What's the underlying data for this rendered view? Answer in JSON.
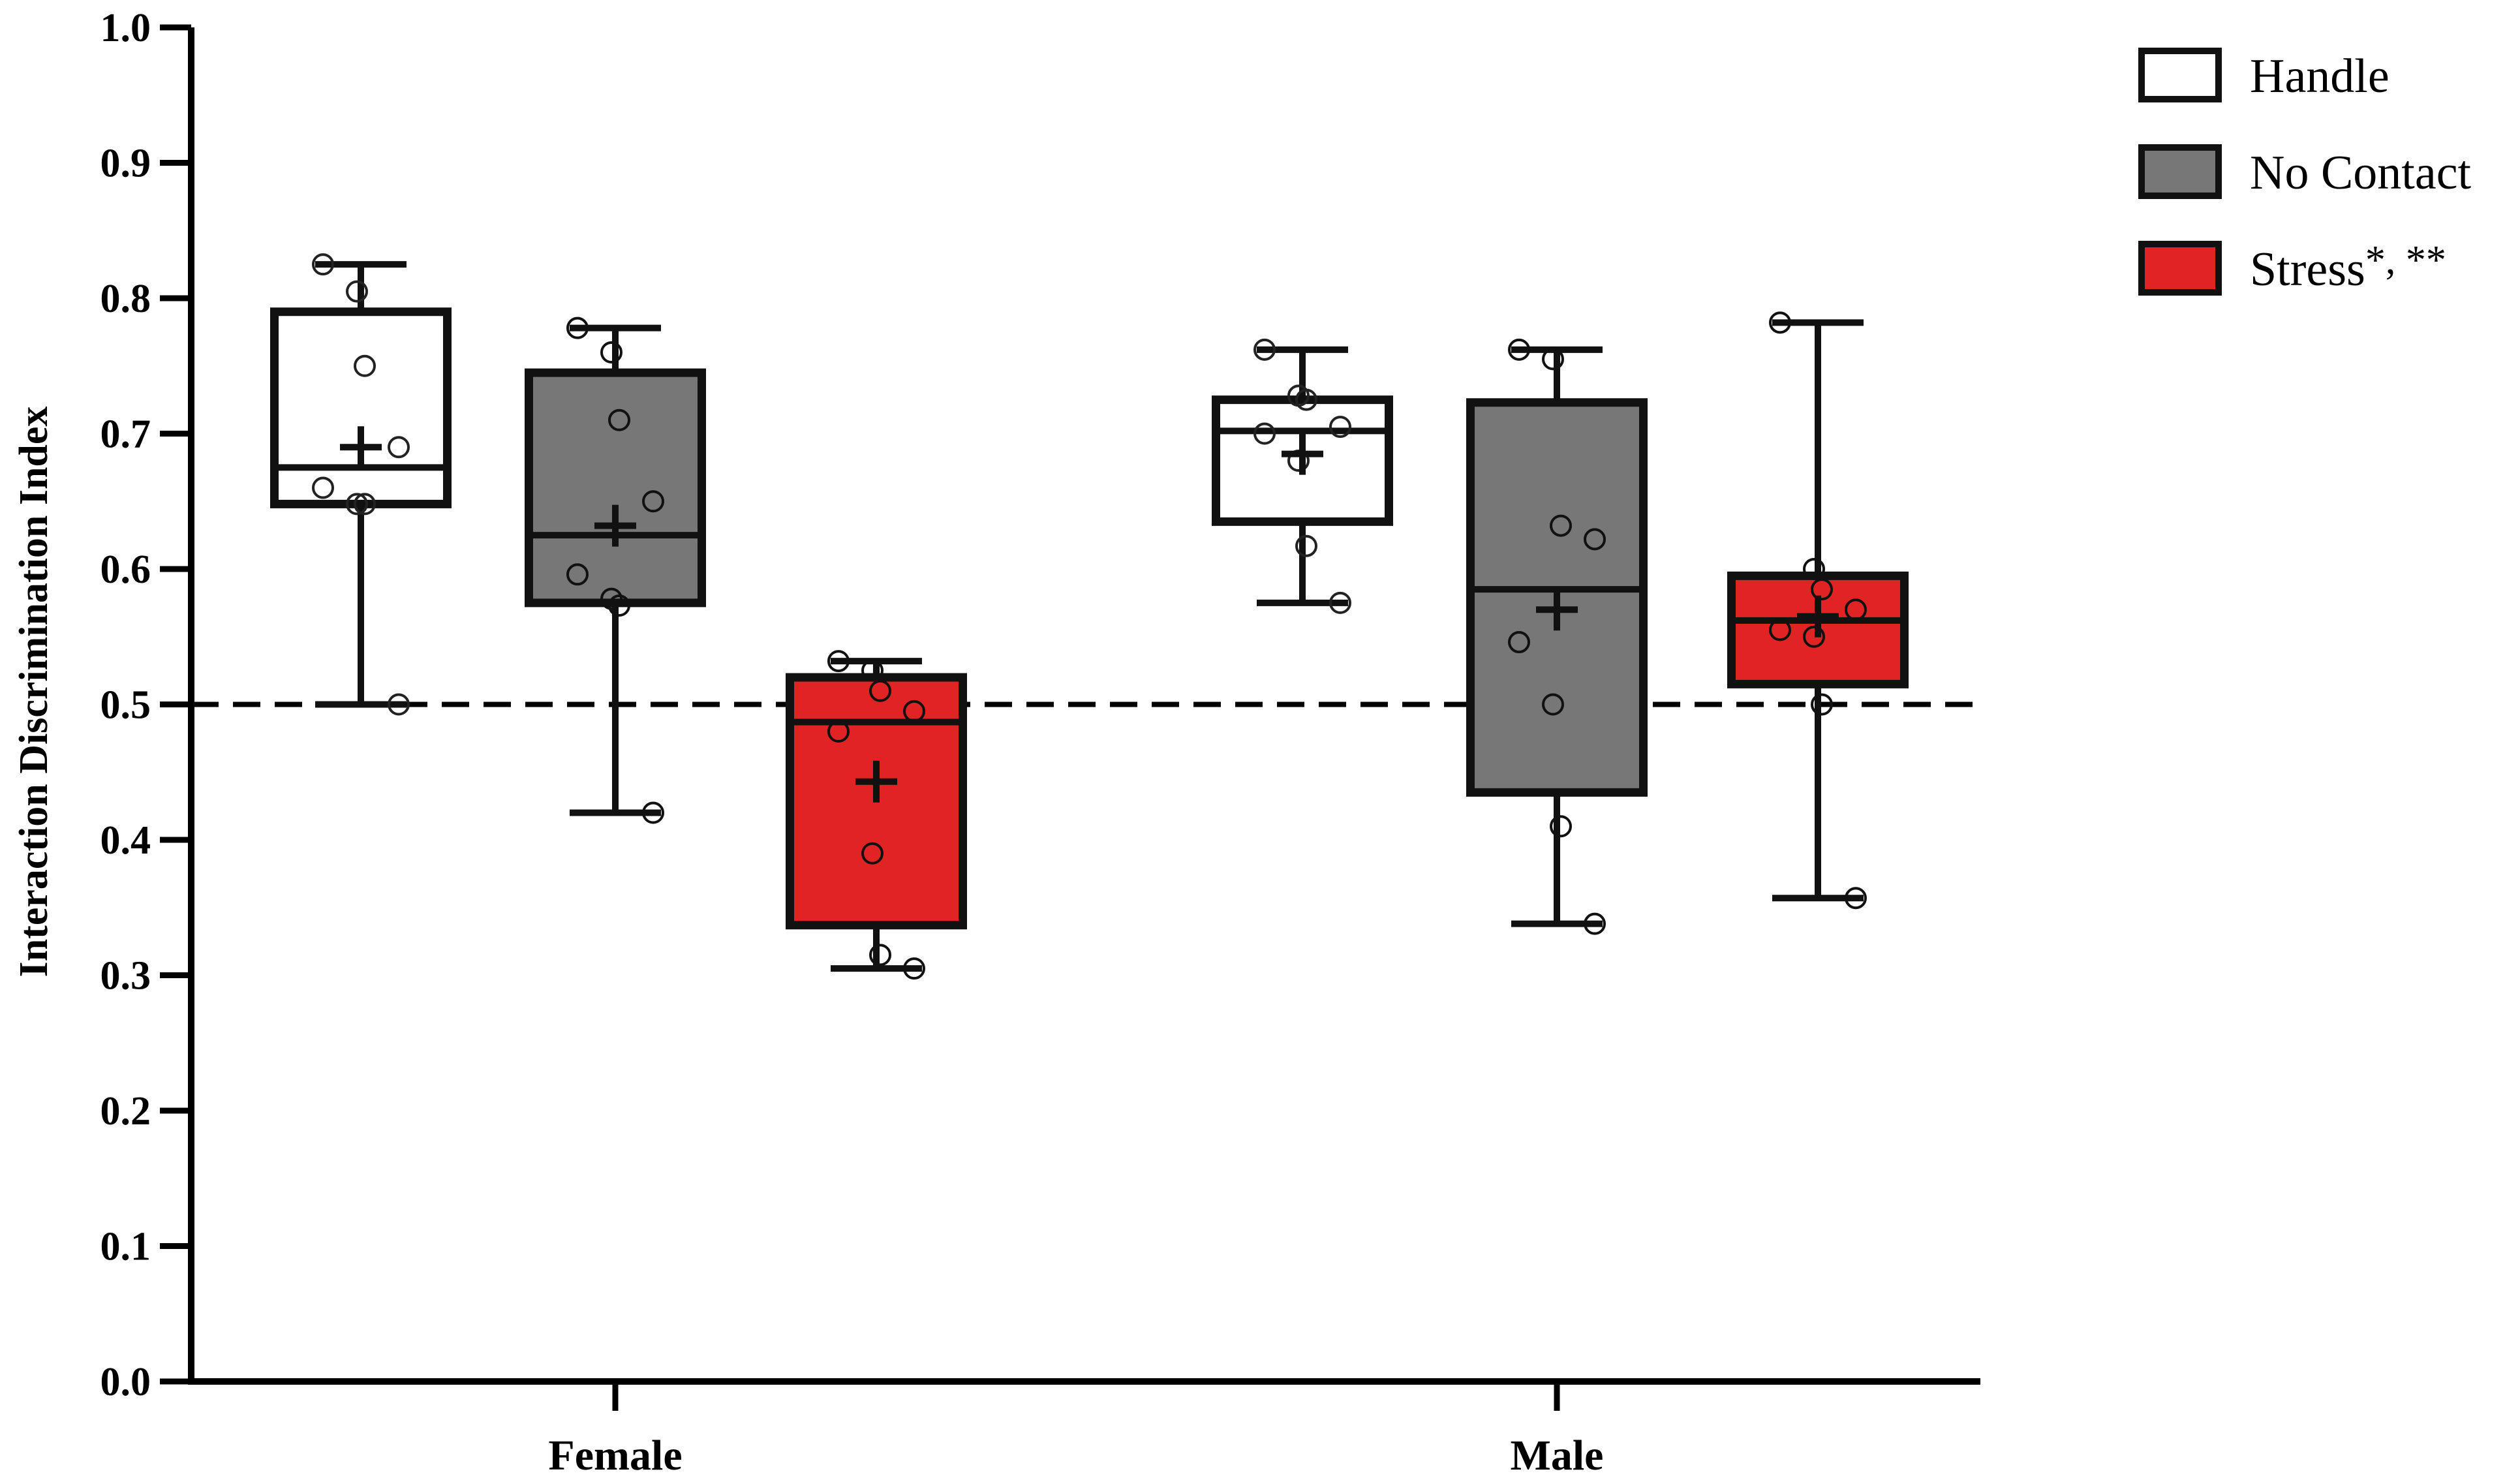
{
  "chart_data": {
    "type": "box",
    "title": "",
    "xlabel": "",
    "ylabel": "Interaction Discrimination Index",
    "ylim": [
      0.0,
      1.0
    ],
    "yticks": [
      "0.0",
      "0.1",
      "0.2",
      "0.3",
      "0.4",
      "0.5",
      "0.6",
      "0.7",
      "0.8",
      "0.9",
      "1.0"
    ],
    "categories": [
      "Female",
      "Male"
    ],
    "reference_line": {
      "y": 0.5,
      "style": "dashed"
    },
    "legend": {
      "position": "top-right"
    },
    "colors": {
      "handle": "#ffffff",
      "no_contact": "#777777",
      "stress": "#e02424",
      "outline": "#111111"
    },
    "series": [
      {
        "name": "Handle",
        "key": "handle",
        "boxes": [
          {
            "category": "Female",
            "min": 0.5,
            "q1": 0.648,
            "median": 0.675,
            "q3": 0.79,
            "max": 0.825,
            "mean": 0.69,
            "points": [
              0.825,
              0.805,
              0.75,
              0.69,
              0.66,
              0.648,
              0.648,
              0.5
            ]
          },
          {
            "category": "Male",
            "min": 0.575,
            "q1": 0.635,
            "median": 0.702,
            "q3": 0.725,
            "max": 0.762,
            "mean": 0.685,
            "points": [
              0.762,
              0.728,
              0.725,
              0.705,
              0.7,
              0.68,
              0.617,
              0.575
            ]
          }
        ]
      },
      {
        "name": "No Contact",
        "key": "no_contact",
        "boxes": [
          {
            "category": "Female",
            "min": 0.42,
            "q1": 0.575,
            "median": 0.625,
            "q3": 0.745,
            "max": 0.778,
            "mean": 0.632,
            "points": [
              0.778,
              0.76,
              0.71,
              0.65,
              0.596,
              0.578,
              0.573,
              0.42
            ]
          },
          {
            "category": "Male",
            "min": 0.338,
            "q1": 0.435,
            "median": 0.585,
            "q3": 0.723,
            "max": 0.762,
            "mean": 0.57,
            "points": [
              0.762,
              0.755,
              0.632,
              0.622,
              0.546,
              0.5,
              0.41,
              0.338
            ]
          }
        ]
      },
      {
        "name": "Stress",
        "label": "Stress",
        "annotation": "*, **",
        "key": "stress",
        "boxes": [
          {
            "category": "Female",
            "min": 0.305,
            "q1": 0.337,
            "median": 0.487,
            "q3": 0.52,
            "max": 0.532,
            "mean": 0.443,
            "points": [
              0.532,
              0.525,
              0.51,
              0.495,
              0.48,
              0.39,
              0.315,
              0.305
            ]
          },
          {
            "category": "Male",
            "min": 0.357,
            "q1": 0.515,
            "median": 0.562,
            "q3": 0.595,
            "max": 0.782,
            "mean": 0.565,
            "points": [
              0.782,
              0.6,
              0.585,
              0.57,
              0.555,
              0.55,
              0.5,
              0.357
            ]
          }
        ]
      }
    ]
  }
}
